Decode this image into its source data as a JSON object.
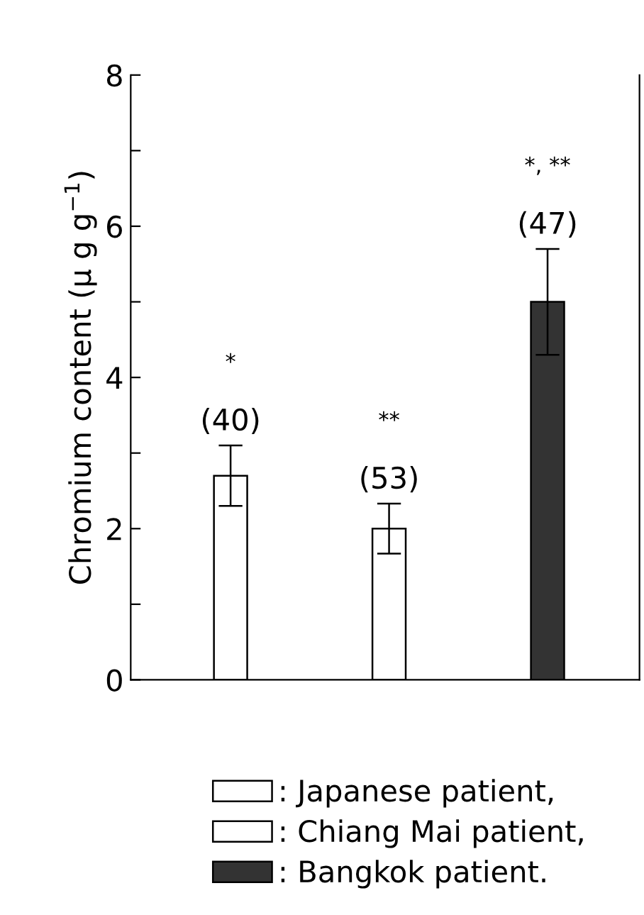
{
  "chart_data": {
    "type": "bar",
    "ylabel": "Chromium content (μ g g$^{−1}$)",
    "categories": [
      null,
      null,
      null
    ],
    "series": [
      {
        "name": ": Japanese patient,",
        "color": "#ffffff",
        "values": [
          2.7,
          null,
          null
        ],
        "errors": [
          0.4,
          null,
          null
        ]
      },
      {
        "name": ": Chiang Mai patient,",
        "color": "#ffffff",
        "values": [
          null,
          2.0,
          null
        ],
        "errors": [
          null,
          0.33,
          null
        ]
      },
      {
        "name": ": Bangkok patient.",
        "color": "#333333",
        "values": [
          null,
          null,
          5.0
        ],
        "errors": [
          null,
          null,
          0.7
        ]
      }
    ],
    "ylim": [
      0,
      8
    ],
    "yticks": [
      0,
      {
        "value": 1,
        "label": null
      },
      2,
      {
        "value": 3,
        "label": null
      },
      4,
      {
        "value": 5,
        "label": null
      },
      6,
      {
        "value": 7,
        "label": null
      },
      8
    ],
    "annotations": [
      "*",
      "(40)",
      "**",
      "(53)",
      "*, **",
      "(47)"
    ],
    "tick_labels": "y",
    "grid": false,
    "legend": "bottom"
  }
}
